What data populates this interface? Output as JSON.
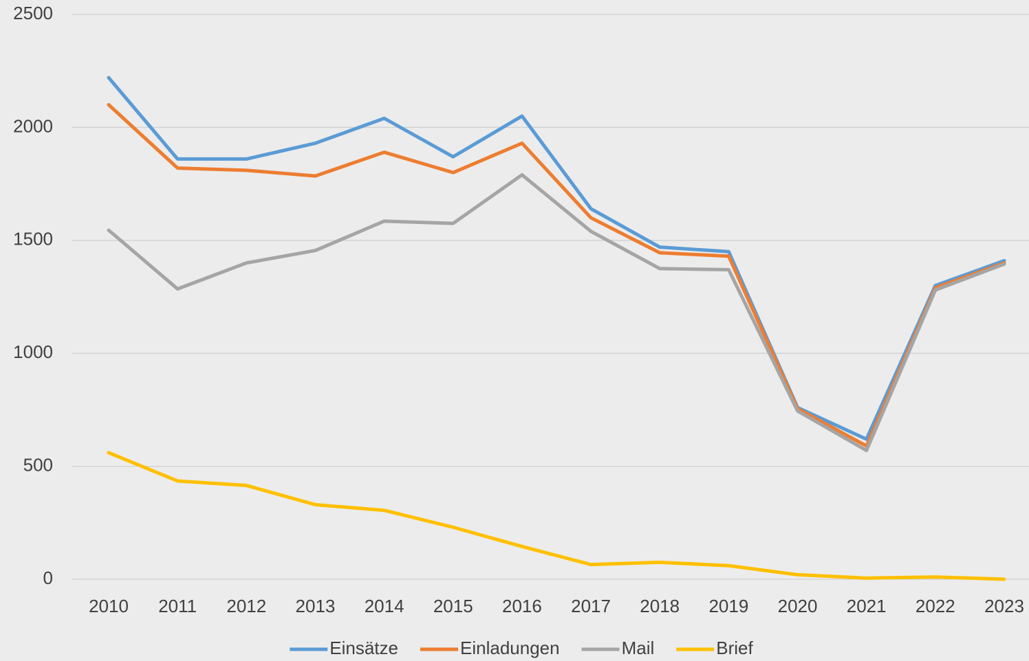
{
  "chart_data": {
    "type": "line",
    "categories": [
      "2010",
      "2011",
      "2012",
      "2013",
      "2014",
      "2015",
      "2016",
      "2017",
      "2018",
      "2019",
      "2020",
      "2021",
      "2022",
      "2023"
    ],
    "series": [
      {
        "name": "Einsätze",
        "color": "#5b9bd5",
        "values": [
          2220,
          1860,
          1860,
          1930,
          2040,
          1870,
          2050,
          1640,
          1470,
          1450,
          760,
          620,
          1300,
          1410
        ]
      },
      {
        "name": "Einladungen",
        "color": "#ed7d31",
        "values": [
          2100,
          1820,
          1810,
          1785,
          1890,
          1800,
          1930,
          1600,
          1445,
          1430,
          755,
          590,
          1290,
          1400
        ]
      },
      {
        "name": "Mail",
        "color": "#a5a5a5",
        "values": [
          1545,
          1285,
          1400,
          1455,
          1585,
          1575,
          1790,
          1540,
          1375,
          1370,
          745,
          570,
          1280,
          1395
        ]
      },
      {
        "name": "Brief",
        "color": "#ffc000",
        "values": [
          560,
          435,
          415,
          330,
          305,
          230,
          145,
          65,
          75,
          60,
          20,
          5,
          10,
          0
        ]
      }
    ],
    "ylim": [
      0,
      2500
    ],
    "yticks": [
      0,
      500,
      1000,
      1500,
      2000,
      2500
    ],
    "grid": true,
    "legend": "bottom"
  }
}
